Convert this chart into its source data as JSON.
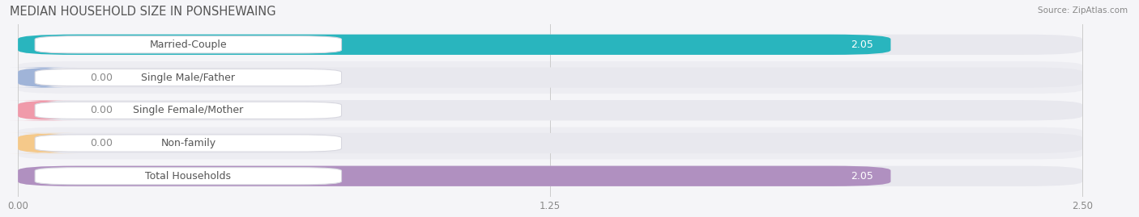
{
  "title": "MEDIAN HOUSEHOLD SIZE IN PONSHEWAING",
  "source": "Source: ZipAtlas.com",
  "categories": [
    "Married-Couple",
    "Single Male/Father",
    "Single Female/Mother",
    "Non-family",
    "Total Households"
  ],
  "values": [
    2.05,
    0.0,
    0.0,
    0.0,
    2.05
  ],
  "bar_colors": [
    "#29b5be",
    "#a0b4d8",
    "#f09aaa",
    "#f5c98a",
    "#b090c0"
  ],
  "bar_bg_color": "#e8e8ee",
  "fig_bg_color": "#f5f5f8",
  "row_bg_even": "#ededf2",
  "row_bg_odd": "#f5f5f8",
  "xlim": [
    0,
    2.5
  ],
  "xmax": 2.5,
  "xticks": [
    0.0,
    1.25,
    2.5
  ],
  "xtick_labels": [
    "0.00",
    "1.25",
    "2.50"
  ],
  "value_label_color_inside": "#ffffff",
  "value_label_color_outside": "#888888",
  "figsize": [
    14.06,
    2.69
  ],
  "dpi": 100,
  "title_fontsize": 10.5,
  "bar_height": 0.62,
  "label_fontsize": 9,
  "value_fontsize": 9,
  "zero_bar_width": 0.12
}
